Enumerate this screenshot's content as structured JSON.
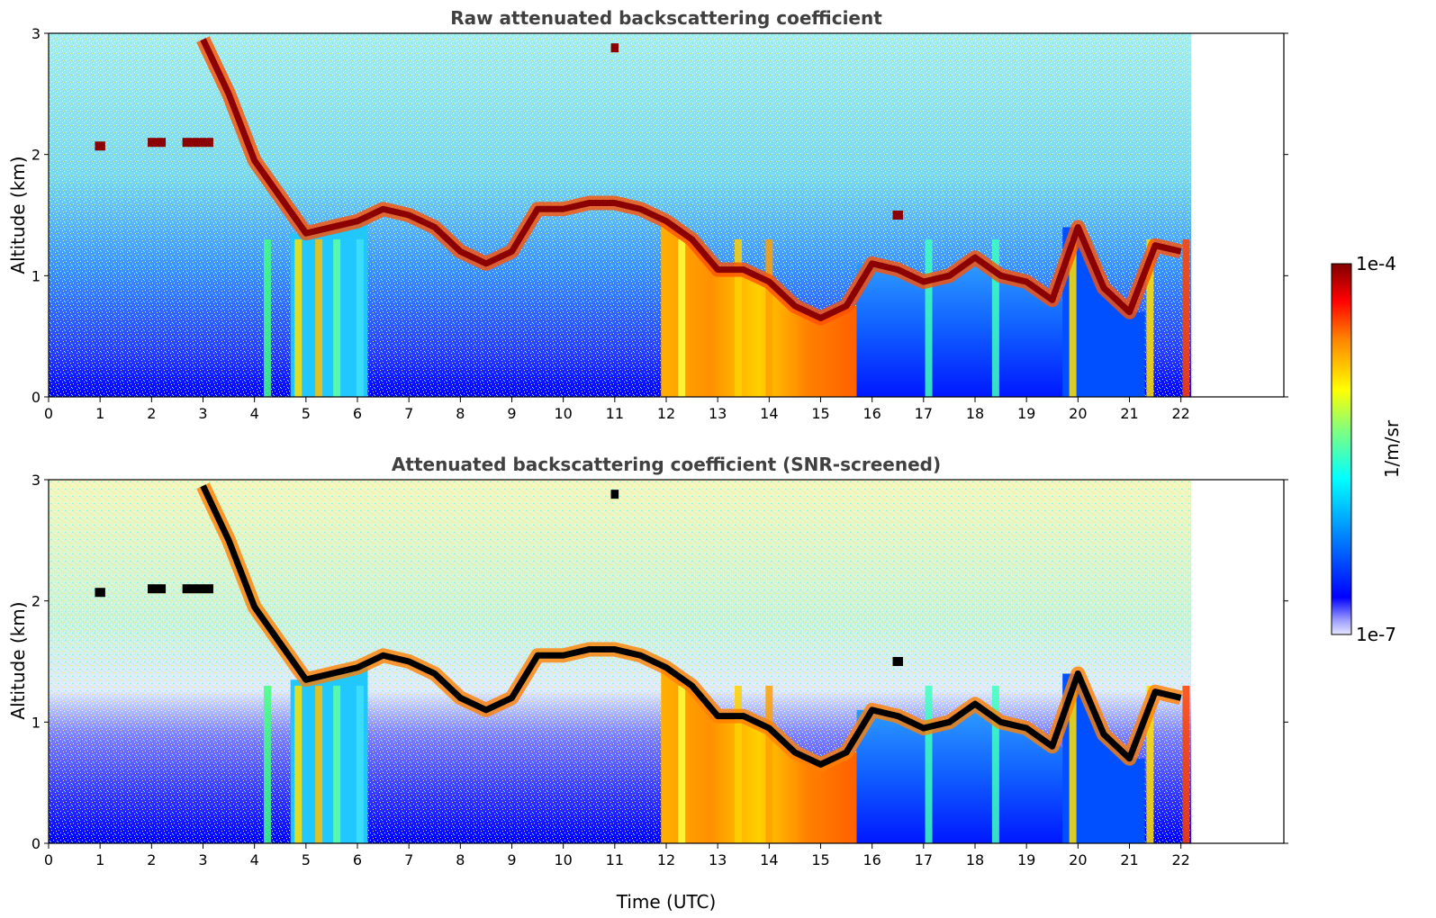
{
  "chart_data": [
    {
      "type": "heatmap",
      "title": "Raw attenuated backscattering coefficient",
      "xlabel": "",
      "ylabel": "Altitude (km)",
      "xlim": [
        0,
        24
      ],
      "ylim": [
        0,
        3
      ],
      "xticks": [
        "0",
        "1",
        "2",
        "3",
        "4",
        "5",
        "6",
        "7",
        "8",
        "9",
        "10",
        "11",
        "12",
        "13",
        "14",
        "15",
        "16",
        "17",
        "18",
        "19",
        "20",
        "21",
        "22"
      ],
      "yticks": [
        "0",
        "1",
        "2",
        "3"
      ],
      "data_end_time_utc": 22.2,
      "colorbar": {
        "label": "1/m/sr",
        "max_label": "1e-4",
        "min_label": "1e-7"
      },
      "cloud_layer_altitude_km": {
        "times_utc": [
          3.0,
          3.5,
          4.0,
          4.5,
          5.0,
          5.5,
          6.0,
          6.5,
          7.0,
          7.5,
          8.0,
          8.5,
          9.0,
          9.5,
          10.0,
          10.5,
          11.0,
          11.5,
          12.0,
          12.5,
          13.0,
          13.5,
          14.0,
          14.5,
          15.0,
          15.5,
          16.0,
          16.5,
          17.0,
          17.5,
          18.0,
          18.5,
          19.0,
          19.5,
          20.0,
          20.5,
          21.0,
          21.5,
          22.0
        ],
        "altitude_km": [
          2.95,
          2.5,
          1.95,
          1.65,
          1.35,
          1.4,
          1.45,
          1.55,
          1.5,
          1.4,
          1.2,
          1.1,
          1.2,
          1.55,
          1.55,
          1.6,
          1.6,
          1.55,
          1.45,
          1.3,
          1.05,
          1.05,
          0.95,
          0.75,
          0.65,
          0.75,
          1.1,
          1.05,
          0.95,
          1.0,
          1.15,
          1.0,
          0.95,
          0.8,
          1.4,
          0.9,
          0.7,
          1.25,
          1.2
        ]
      }
    },
    {
      "type": "heatmap",
      "title": "Attenuated backscattering coefficient (SNR-screened)",
      "xlabel": "Time (UTC)",
      "ylabel": "Altitude (km)",
      "xlim": [
        0,
        24
      ],
      "ylim": [
        0,
        3
      ],
      "xticks": [
        "0",
        "1",
        "2",
        "3",
        "4",
        "5",
        "6",
        "7",
        "8",
        "9",
        "10",
        "11",
        "12",
        "13",
        "14",
        "15",
        "16",
        "17",
        "18",
        "19",
        "20",
        "21",
        "22"
      ],
      "yticks": [
        "0",
        "1",
        "2",
        "3"
      ],
      "data_end_time_utc": 22.2
    }
  ],
  "colors": {
    "colormap_jet_low_to_high": [
      "#e6e6ff",
      "#0000ff",
      "#00a0ff",
      "#00ffff",
      "#7fff7f",
      "#ffff00",
      "#ff8000",
      "#ff0000",
      "#800000"
    ],
    "screened_cloud_peak": "#000000"
  }
}
